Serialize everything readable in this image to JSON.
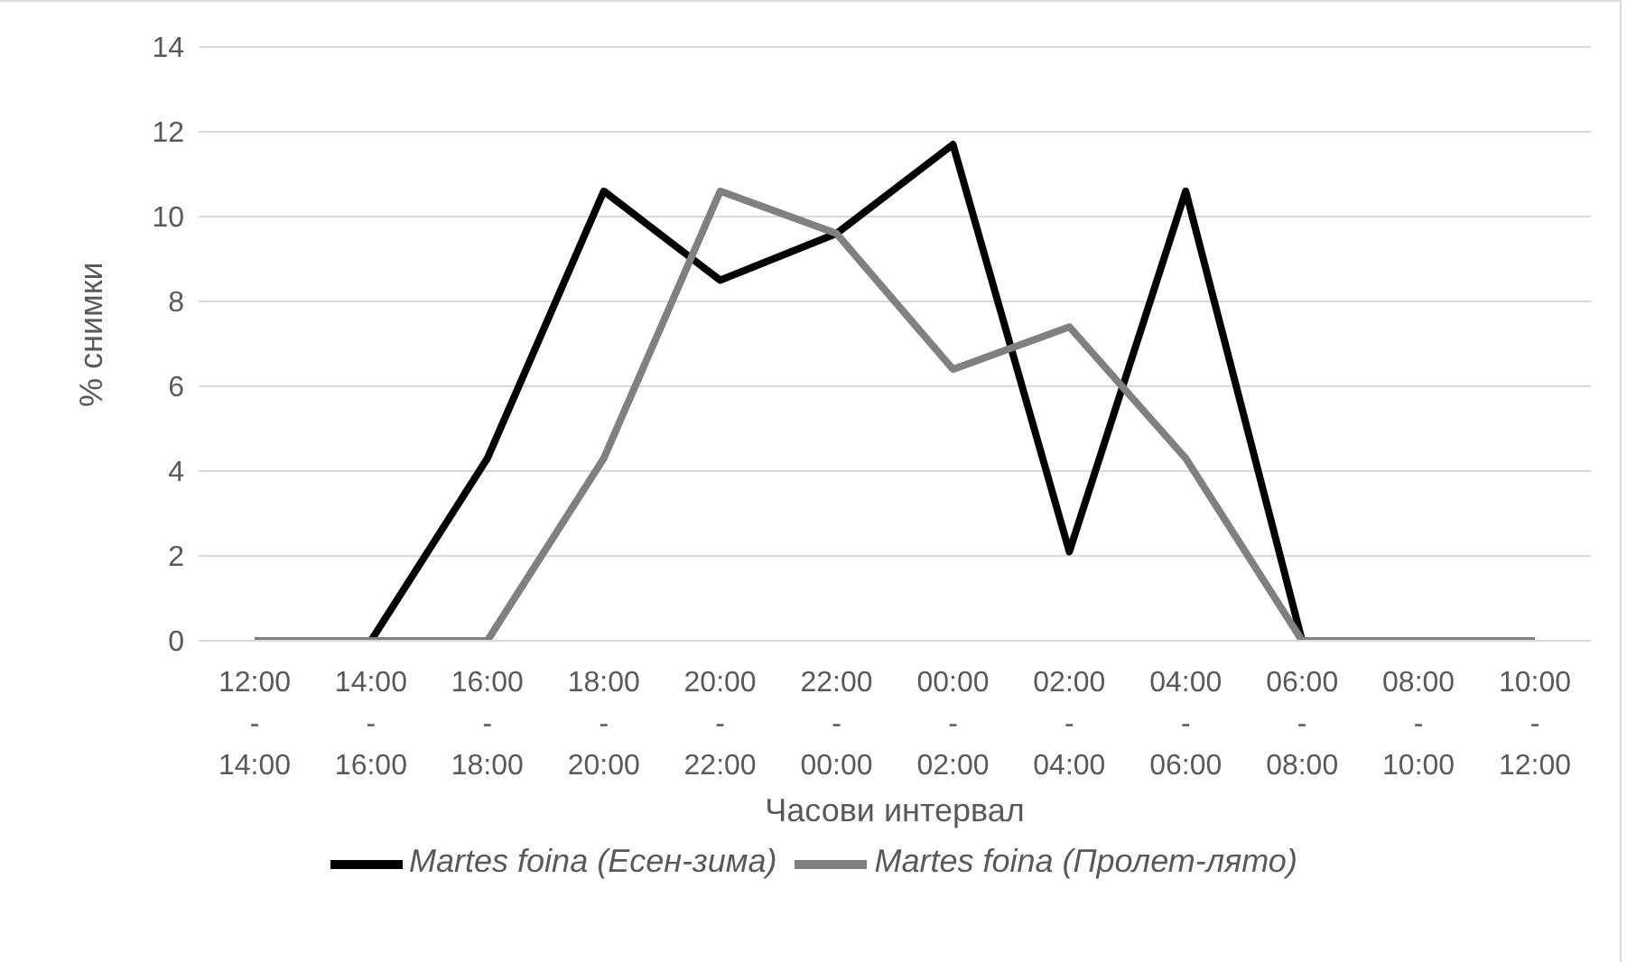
{
  "chart_data": {
    "type": "line",
    "xlabel": "Часови интервал",
    "ylabel": "% снимки",
    "categories": [
      "12:00 - 14:00",
      "14:00 - 16:00",
      "16:00 - 18:00",
      "18:00 - 20:00",
      "20:00 - 22:00",
      "22:00 - 00:00",
      "00:00 - 02:00",
      "02:00 - 04:00",
      "04:00 - 06:00",
      "06:00 - 08:00",
      "08:00 - 10:00",
      "10:00 - 12:00"
    ],
    "series": [
      {
        "name": "Martes foina (Есен-зима)",
        "color": "#000000",
        "values": [
          0,
          0,
          4.3,
          10.6,
          8.5,
          9.6,
          11.7,
          2.1,
          10.6,
          0,
          0,
          0
        ]
      },
      {
        "name": "Martes foina (Пролет-лято)",
        "color": "#808080",
        "values": [
          0,
          0,
          0,
          4.3,
          10.6,
          9.6,
          6.4,
          7.4,
          4.3,
          0,
          0,
          0
        ]
      }
    ],
    "ylim": [
      0,
      14
    ],
    "yticks": [
      0,
      2,
      4,
      6,
      8,
      10,
      12,
      14
    ],
    "grid": "y",
    "legend": "bottom",
    "marker": "none",
    "line_style": "solid"
  }
}
